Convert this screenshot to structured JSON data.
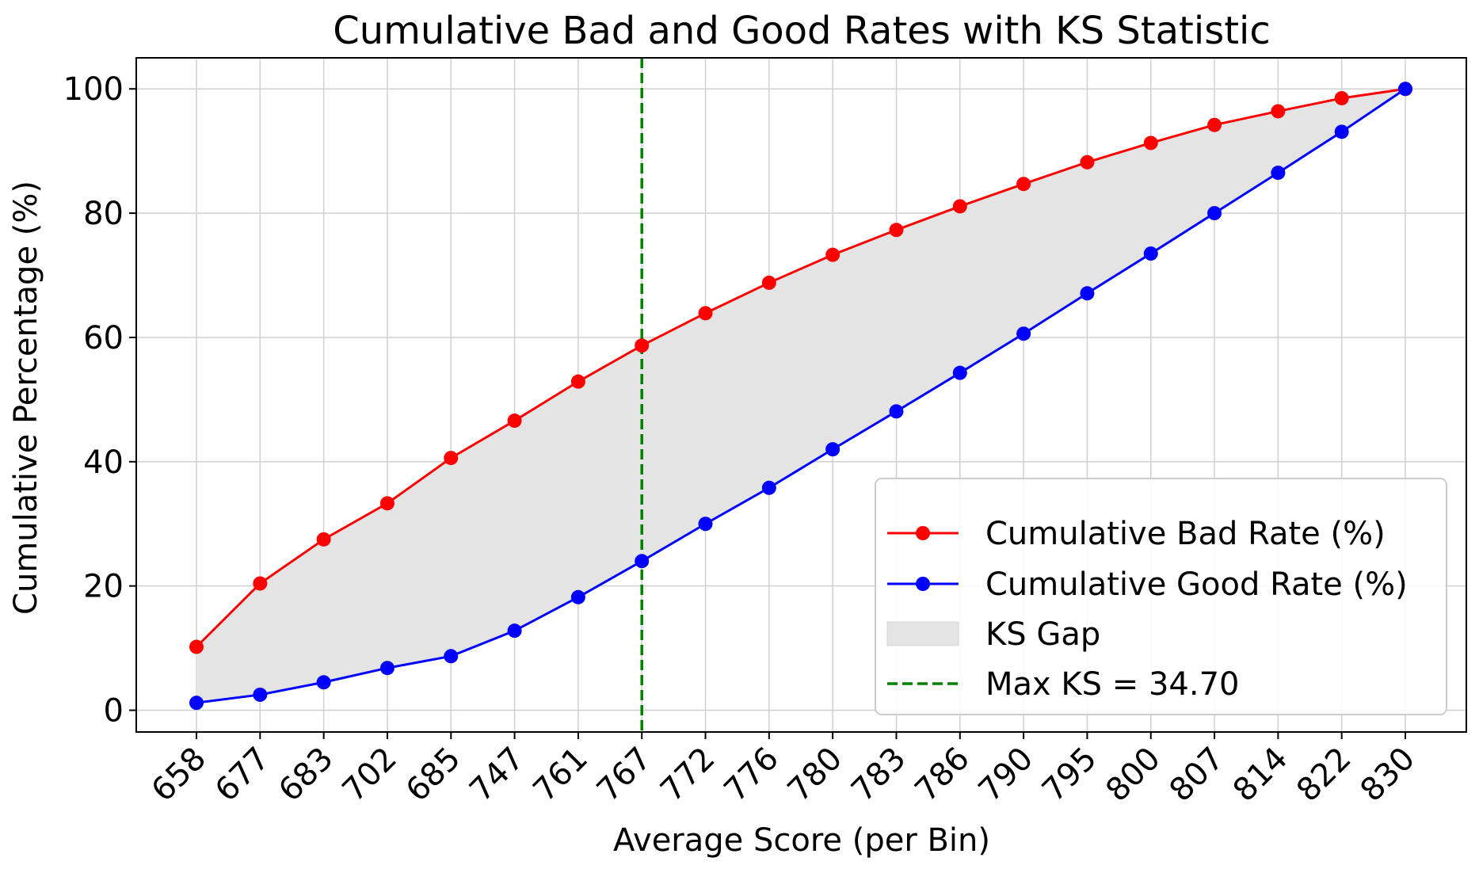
{
  "chart_data": {
    "type": "line",
    "title": "Cumulative Bad and Good Rates with KS Statistic",
    "xlabel": "Average Score (per Bin)",
    "ylabel": "Cumulative Percentage (%)",
    "categories": [
      "658",
      "677",
      "683",
      "702",
      "685",
      "747",
      "761",
      "767",
      "772",
      "776",
      "780",
      "783",
      "786",
      "790",
      "795",
      "800",
      "807",
      "814",
      "822",
      "830"
    ],
    "ylim": [
      -3.5,
      105
    ],
    "yticks": [
      0,
      20,
      40,
      60,
      80,
      100
    ],
    "grid": true,
    "legend_position": "lower-right",
    "series": [
      {
        "name": "Cumulative Bad Rate (%)",
        "color": "#ff0000",
        "marker": "circle",
        "values": [
          10.2,
          20.4,
          27.5,
          33.3,
          40.6,
          46.6,
          52.9,
          58.7,
          63.9,
          68.8,
          73.3,
          77.3,
          81.1,
          84.7,
          88.2,
          91.3,
          94.2,
          96.4,
          98.5,
          100.0
        ]
      },
      {
        "name": "Cumulative Good Rate (%)",
        "color": "#0000ff",
        "marker": "circle",
        "values": [
          1.2,
          2.5,
          4.5,
          6.8,
          8.7,
          12.8,
          18.2,
          24.0,
          30.0,
          35.8,
          42.0,
          48.1,
          54.3,
          60.6,
          67.1,
          73.5,
          80.0,
          86.5,
          93.1,
          100.0
        ]
      }
    ],
    "fill_between": {
      "name": "KS Gap",
      "color": "#e4e4e4"
    },
    "vline": {
      "name": "Max KS = 34.70",
      "category": "767",
      "color": "#008000",
      "style": "dashed"
    }
  }
}
